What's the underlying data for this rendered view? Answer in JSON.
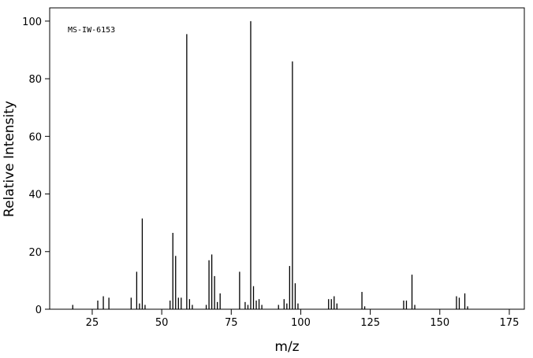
{
  "chart_data": {
    "type": "bar",
    "annotation": "MS-IW-6153",
    "xlabel": "m/z",
    "ylabel": "Relative Intensity",
    "x": [
      18,
      27,
      29,
      31,
      39,
      41,
      42,
      43,
      44,
      53,
      54,
      55,
      56,
      57,
      59,
      60,
      61,
      66,
      67,
      68,
      69,
      70,
      71,
      78,
      80,
      81,
      82,
      83,
      84,
      85,
      86,
      92,
      94,
      95,
      96,
      97,
      98,
      99,
      110,
      111,
      112,
      113,
      122,
      123,
      137,
      138,
      140,
      141,
      156,
      157,
      159,
      160
    ],
    "values": [
      1.5,
      3,
      4.5,
      4,
      4,
      13,
      2,
      31.5,
      1.5,
      3,
      26.5,
      18.5,
      4,
      4,
      95.5,
      3.5,
      1.5,
      1.5,
      17,
      19,
      11.5,
      2.5,
      5.5,
      13,
      2.5,
      1.5,
      100,
      8,
      3,
      3.5,
      1.5,
      1.5,
      3.5,
      2,
      15,
      86,
      9,
      2,
      3.5,
      3.5,
      4.5,
      2,
      6,
      1,
      3,
      3,
      12,
      1.5,
      4.5,
      4,
      5.5,
      1
    ],
    "color": "#000000",
    "xlim": [
      9.7,
      180.4
    ],
    "xticks": [
      25,
      50,
      75,
      100,
      125,
      150,
      175
    ],
    "ylim": [
      0,
      104.6
    ],
    "yticks": [
      0,
      20,
      40,
      60,
      80,
      100
    ]
  }
}
